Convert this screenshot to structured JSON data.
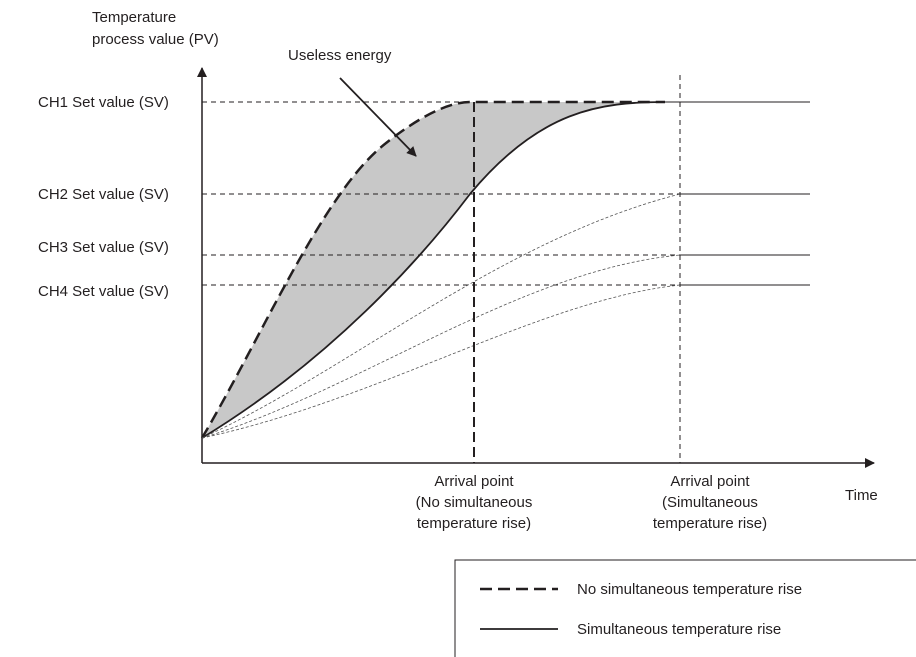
{
  "axis": {
    "y_label": [
      "Temperature",
      "process value (PV)"
    ],
    "x_label": "Time"
  },
  "annotation": "Useless energy",
  "set_values": [
    "CH1 Set value (SV)",
    "CH2 Set value (SV)",
    "CH3 Set value (SV)",
    "CH4 Set value (SV)"
  ],
  "arrival_points": [
    [
      "Arrival point",
      "(No simultaneous",
      "temperature rise)"
    ],
    [
      "Arrival point",
      "(Simultaneous",
      "temperature rise)"
    ]
  ],
  "legend": [
    "No simultaneous temperature rise",
    "Simultaneous temperature rise"
  ]
}
